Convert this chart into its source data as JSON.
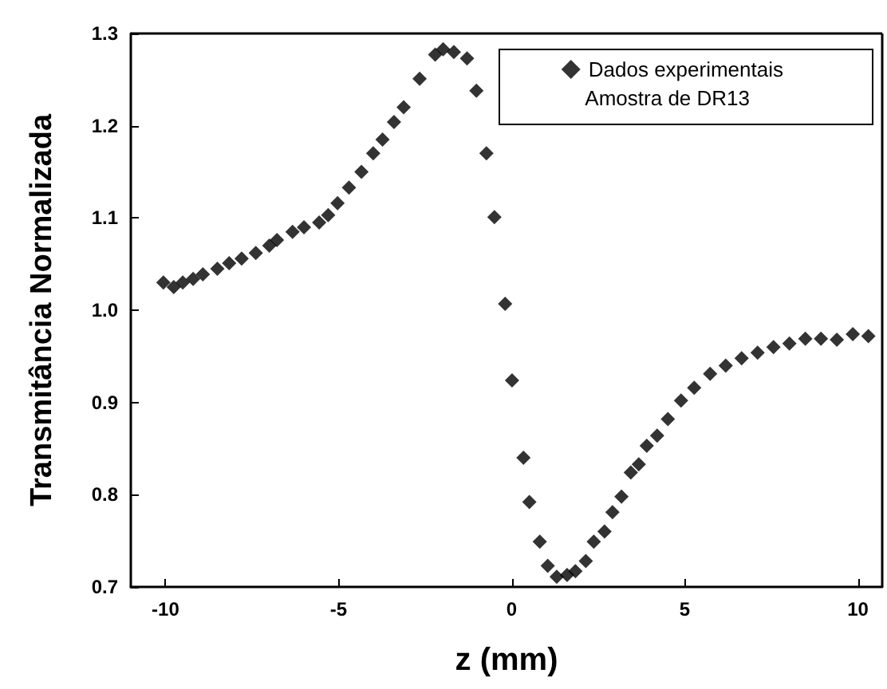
{
  "chart_data": {
    "type": "scatter",
    "xlabel": "z (mm)",
    "ylabel": "Transmitância Normalizada",
    "legend_title": "Amostra de DR13",
    "legend": "top right",
    "marker": "diamond",
    "grid": false,
    "xlim": [
      -11,
      10.7
    ],
    "xticks": [
      -10,
      -5,
      0,
      5,
      10
    ],
    "ylim": [
      0.7,
      1.3
    ],
    "yticks": [
      0.7,
      0.8,
      0.9,
      {
        "value": 1,
        "label": "1.0"
      },
      1.1,
      1.2,
      1.3
    ],
    "x": [
      -10.06,
      -9.76,
      -9.5,
      -9.2,
      -8.92,
      -8.5,
      -8.16,
      -7.8,
      -7.39,
      -7.0,
      -6.78,
      -6.33,
      -6.0,
      -5.56,
      -5.3,
      -5.03,
      -4.7,
      -4.34,
      -4.0,
      -3.73,
      -3.4,
      -3.12,
      -2.66,
      -2.21,
      -1.98,
      -1.67,
      -1.29,
      -1.02,
      -0.73,
      -0.5,
      -0.19,
      0.01,
      0.34,
      0.51,
      0.81,
      1.04,
      1.3,
      1.6,
      1.84,
      2.14,
      2.37,
      2.68,
      2.91,
      3.17,
      3.44,
      3.67,
      3.9,
      4.2,
      4.51,
      4.89,
      5.27,
      5.73,
      6.18,
      6.64,
      7.1,
      7.56,
      8.02,
      8.48,
      8.93,
      9.39,
      9.85,
      10.3
    ],
    "series": [
      {
        "name": "Dados experimentais",
        "color": "#000000",
        "values": [
          1.03,
          1.025,
          1.03,
          1.034,
          1.039,
          1.045,
          1.051,
          1.056,
          1.062,
          1.07,
          1.076,
          1.085,
          1.09,
          1.095,
          1.103,
          1.116,
          1.133,
          1.15,
          1.17,
          1.185,
          1.204,
          1.22,
          1.251,
          1.277,
          1.283,
          1.28,
          1.273,
          1.238,
          1.17,
          1.101,
          1.007,
          0.924,
          0.84,
          0.792,
          0.749,
          0.723,
          0.711,
          0.713,
          0.717,
          0.728,
          0.749,
          0.76,
          0.781,
          0.798,
          0.824,
          0.833,
          0.853,
          0.864,
          0.882,
          0.902,
          0.916,
          0.931,
          0.94,
          0.948,
          0.954,
          0.96,
          0.964,
          0.969,
          0.969,
          0.968,
          0.974,
          0.972
        ]
      }
    ]
  }
}
